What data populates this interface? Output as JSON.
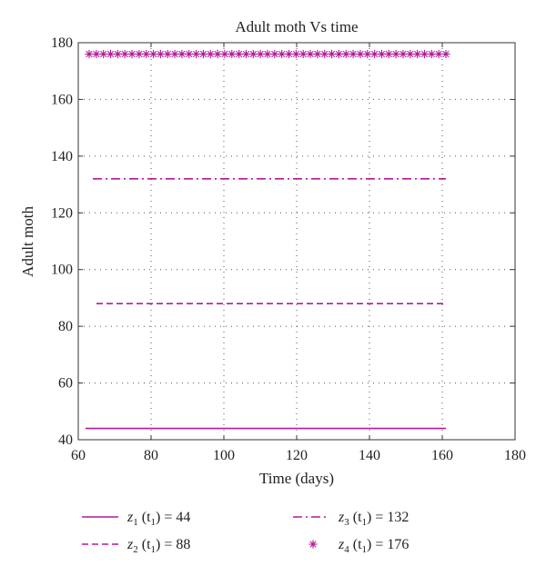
{
  "chart_data": {
    "type": "line",
    "title": "Adult moth Vs time",
    "xlabel": "Time (days)",
    "ylabel": "Adult moth",
    "xlim": [
      60,
      180
    ],
    "ylim": [
      40,
      180
    ],
    "xticks": [
      "60",
      "80",
      "100",
      "120",
      "140",
      "160",
      "180"
    ],
    "yticks": [
      "40",
      "60",
      "80",
      "100",
      "120",
      "140",
      "160",
      "180"
    ],
    "grid": true,
    "legend_placement": "bottom",
    "series": [
      {
        "key": "z1",
        "var": "z",
        "sub": "1",
        "arg": "(t",
        "argsub": "1",
        "rest": ") = 44",
        "style": "solid",
        "color": "#b5199a",
        "x": [
          62,
          161
        ],
        "y": [
          44,
          44
        ]
      },
      {
        "key": "z2",
        "var": "z",
        "sub": "2",
        "arg": "(t",
        "argsub": "1",
        "rest": ") = 88",
        "style": "dashed",
        "color": "#b5199a",
        "x": [
          65,
          161
        ],
        "y": [
          88,
          88
        ]
      },
      {
        "key": "z3",
        "var": "z",
        "sub": "3",
        "arg": "(t",
        "argsub": "1",
        "rest": ") = 132",
        "style": "dashdot",
        "color": "#b5199a",
        "x": [
          64,
          161
        ],
        "y": [
          132,
          132
        ]
      },
      {
        "key": "z4",
        "var": "z",
        "sub": "4",
        "arg": "(t",
        "argsub": "1",
        "rest": ") = 176",
        "style": "markers",
        "color": "#b5199a",
        "x": [
          63,
          64.96,
          66.92,
          68.88,
          70.84,
          72.8,
          74.76,
          76.72,
          78.68,
          80.64,
          82.6,
          84.56,
          86.52,
          88.48,
          90.44,
          92.4,
          94.36,
          96.32,
          98.28,
          100.24,
          102.2,
          104.16,
          106.12,
          108.08,
          110.04,
          112,
          113.96,
          115.92,
          117.88,
          119.84,
          121.8,
          123.76,
          125.72,
          127.68,
          129.64,
          131.6,
          133.56,
          135.52,
          137.48,
          139.44,
          141.4,
          143.36,
          145.32,
          147.28,
          149.24,
          151.2,
          153.16,
          155.12,
          157.08,
          159.04,
          161
        ],
        "y": [
          176,
          176,
          176,
          176,
          176,
          176,
          176,
          176,
          176,
          176,
          176,
          176,
          176,
          176,
          176,
          176,
          176,
          176,
          176,
          176,
          176,
          176,
          176,
          176,
          176,
          176,
          176,
          176,
          176,
          176,
          176,
          176,
          176,
          176,
          176,
          176,
          176,
          176,
          176,
          176,
          176,
          176,
          176,
          176,
          176,
          176,
          176,
          176,
          176,
          176,
          176
        ]
      }
    ]
  }
}
